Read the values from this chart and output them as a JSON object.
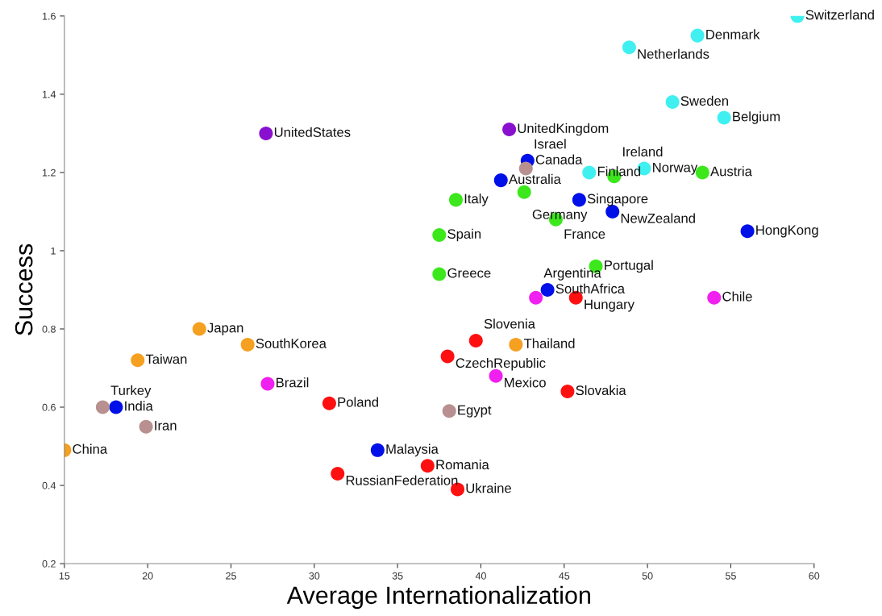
{
  "chart_data": {
    "type": "scatter",
    "xlabel": "Average Internationalization",
    "ylabel": "Success",
    "xlim": [
      15,
      60
    ],
    "xticks": [
      15,
      20,
      25,
      30,
      35,
      40,
      45,
      50,
      55,
      60
    ],
    "ylim": [
      0.2,
      1.6
    ],
    "yticks": [
      0.2,
      0.4,
      0.6,
      0.8,
      1,
      1.2,
      1.4,
      1.6
    ],
    "grid": false,
    "legend": false,
    "marker": "circle",
    "series": [
      {
        "color": "#40f0f0",
        "x": [
          59.0,
          53.0,
          48.9,
          51.5,
          54.6,
          46.5,
          49.8
        ],
        "values": [
          1.6,
          1.55,
          1.52,
          1.38,
          1.34,
          1.2,
          1.21
        ]
      },
      {
        "color": "#8a10d0",
        "x": [
          27.1,
          41.7
        ],
        "values": [
          1.3,
          1.31
        ]
      },
      {
        "color": "#0010e8",
        "x": [
          42.8,
          41.2,
          45.9,
          47.9,
          56.0,
          44.0,
          33.8,
          18.1
        ],
        "values": [
          1.23,
          1.18,
          1.13,
          1.1,
          1.05,
          0.9,
          0.49,
          0.6
        ]
      },
      {
        "color": "#3ce81c",
        "x": [
          53.3,
          48.0,
          38.5,
          42.6,
          44.5,
          37.5,
          37.5,
          46.9
        ],
        "values": [
          1.2,
          1.19,
          1.13,
          1.15,
          1.08,
          1.04,
          0.94,
          0.96
        ]
      },
      {
        "color": "#b89090",
        "x": [
          42.7,
          17.3,
          19.9,
          38.1
        ],
        "values": [
          1.21,
          0.6,
          0.55,
          0.59
        ]
      },
      {
        "color": "#f5a020",
        "x": [
          23.1,
          26.0,
          19.4,
          42.1,
          15.0
        ],
        "values": [
          0.8,
          0.76,
          0.72,
          0.76,
          0.49
        ]
      },
      {
        "color": "#ff1010",
        "x": [
          45.7,
          39.7,
          38.0,
          45.2,
          30.9,
          36.8,
          31.4,
          38.6
        ],
        "values": [
          0.88,
          0.77,
          0.73,
          0.64,
          0.61,
          0.45,
          0.43,
          0.39
        ]
      },
      {
        "color": "#f020f0",
        "x": [
          43.3,
          54.0,
          40.9,
          27.2
        ],
        "values": [
          0.88,
          0.88,
          0.68,
          0.66
        ]
      }
    ],
    "annotations": [
      {
        "text": "Switzerland",
        "x": 59.0,
        "y": 1.6
      },
      {
        "text": "Denmark",
        "x": 53.0,
        "y": 1.55
      },
      {
        "text": "Netherlands",
        "x": 48.9,
        "y": 1.52
      },
      {
        "text": "Sweden",
        "x": 51.5,
        "y": 1.38
      },
      {
        "text": "Belgium",
        "x": 54.6,
        "y": 1.34
      },
      {
        "text": "Finland",
        "x": 46.5,
        "y": 1.2
      },
      {
        "text": "Norway",
        "x": 49.8,
        "y": 1.21
      },
      {
        "text": "UnitedStates",
        "x": 27.1,
        "y": 1.3
      },
      {
        "text": "UnitedKingdom",
        "x": 41.7,
        "y": 1.31
      },
      {
        "text": "Canada",
        "x": 42.8,
        "y": 1.23
      },
      {
        "text": "Australia",
        "x": 41.2,
        "y": 1.18
      },
      {
        "text": "Singapore",
        "x": 45.9,
        "y": 1.13
      },
      {
        "text": "NewZealand",
        "x": 47.9,
        "y": 1.1
      },
      {
        "text": "HongKong",
        "x": 56.0,
        "y": 1.05
      },
      {
        "text": "SouthAfrica",
        "x": 44.0,
        "y": 0.9
      },
      {
        "text": "Malaysia",
        "x": 33.8,
        "y": 0.49
      },
      {
        "text": "India",
        "x": 18.1,
        "y": 0.6
      },
      {
        "text": "Austria",
        "x": 53.3,
        "y": 1.2
      },
      {
        "text": "Ireland",
        "x": 48.0,
        "y": 1.19
      },
      {
        "text": "Italy",
        "x": 38.5,
        "y": 1.13
      },
      {
        "text": "Germany",
        "x": 42.6,
        "y": 1.15
      },
      {
        "text": "France",
        "x": 44.5,
        "y": 1.08
      },
      {
        "text": "Spain",
        "x": 37.5,
        "y": 1.04
      },
      {
        "text": "Greece",
        "x": 37.5,
        "y": 0.94
      },
      {
        "text": "Portugal",
        "x": 46.9,
        "y": 0.96
      },
      {
        "text": "Israel",
        "x": 42.7,
        "y": 1.21
      },
      {
        "text": "Turkey",
        "x": 17.3,
        "y": 0.6
      },
      {
        "text": "Iran",
        "x": 19.9,
        "y": 0.55
      },
      {
        "text": "Egypt",
        "x": 38.1,
        "y": 0.59
      },
      {
        "text": "Japan",
        "x": 23.1,
        "y": 0.8
      },
      {
        "text": "SouthKorea",
        "x": 26.0,
        "y": 0.76
      },
      {
        "text": "Taiwan",
        "x": 19.4,
        "y": 0.72
      },
      {
        "text": "Thailand",
        "x": 42.1,
        "y": 0.76
      },
      {
        "text": "China",
        "x": 15.0,
        "y": 0.49
      },
      {
        "text": "Hungary",
        "x": 45.7,
        "y": 0.88
      },
      {
        "text": "Slovenia",
        "x": 39.7,
        "y": 0.77
      },
      {
        "text": "CzechRepublic",
        "x": 38.0,
        "y": 0.73
      },
      {
        "text": "Slovakia",
        "x": 45.2,
        "y": 0.64
      },
      {
        "text": "Poland",
        "x": 30.9,
        "y": 0.61
      },
      {
        "text": "Romania",
        "x": 36.8,
        "y": 0.45
      },
      {
        "text": "RussianFederation",
        "x": 31.4,
        "y": 0.43
      },
      {
        "text": "Ukraine",
        "x": 38.6,
        "y": 0.39
      },
      {
        "text": "Argentina",
        "x": 43.3,
        "y": 0.88
      },
      {
        "text": "Chile",
        "x": 54.0,
        "y": 0.88
      },
      {
        "text": "Mexico",
        "x": 40.9,
        "y": 0.68
      },
      {
        "text": "Brazil",
        "x": 27.2,
        "y": 0.66
      }
    ]
  }
}
